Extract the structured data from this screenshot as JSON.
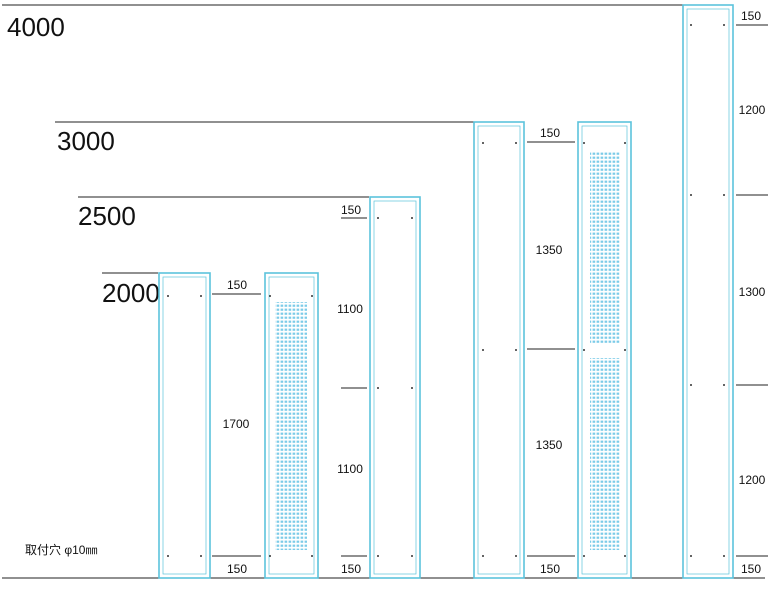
{
  "height_labels": {
    "h4000": "4000",
    "h3000": "3000",
    "h2500": "2500",
    "h2000": "2000"
  },
  "dimensions": {
    "p2000": {
      "top": "150",
      "mid": "1700",
      "bottom": "150"
    },
    "p2500": {
      "top": "150",
      "upper": "1100",
      "lower": "1100",
      "bottom": "150"
    },
    "p3000": {
      "top": "150",
      "upper": "1350",
      "lower": "1350",
      "bottom": "150"
    },
    "p4000": {
      "top": "150",
      "upper": "1200",
      "middle": "1300",
      "lower": "1200",
      "bottom": "150"
    }
  },
  "mounting_note": "取付穴 φ10㎜",
  "colors": {
    "panel_outline": "#5bc3dc",
    "perforation": "#7ccbe8",
    "line": "#222222"
  }
}
